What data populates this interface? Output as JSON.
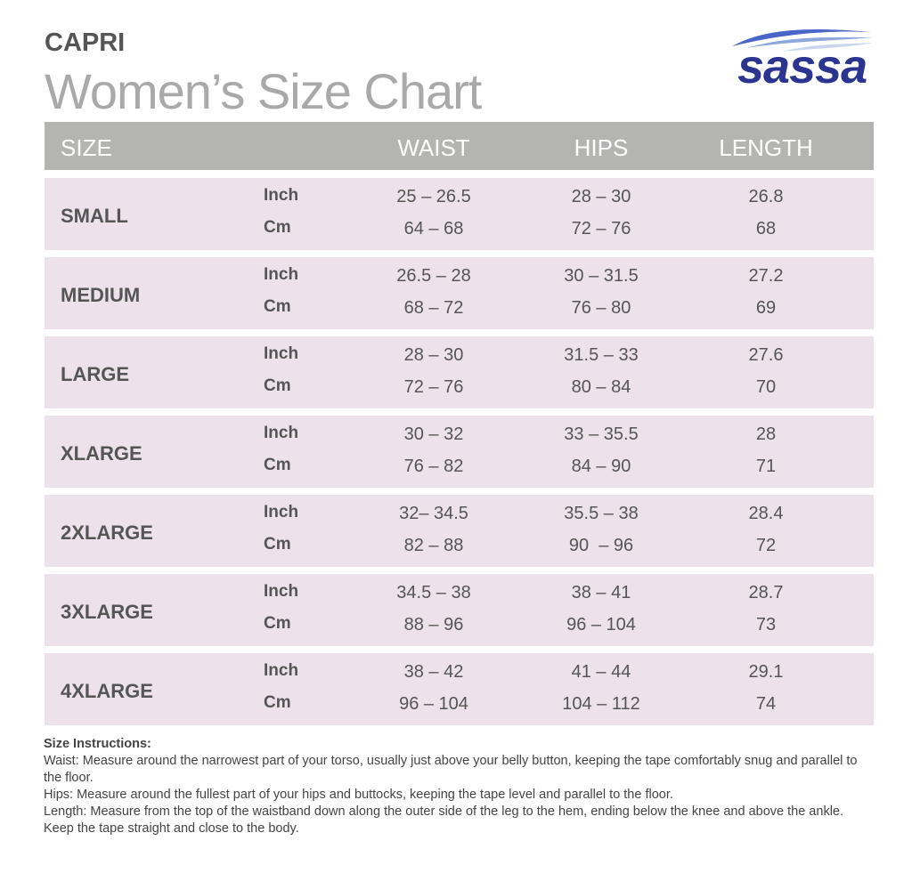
{
  "header": {
    "subtitle": "CAPRI",
    "title": "Women’s Size Chart",
    "logo": "sassa"
  },
  "table": {
    "columns": [
      "SIZE",
      "WAIST",
      "HIPS",
      "LENGTH"
    ],
    "rows": [
      {
        "size": "SMALL",
        "units": [
          {
            "unit": "Inch",
            "waist": "25 – 26.5",
            "hips": "28 – 30",
            "length": "26.8"
          },
          {
            "unit": "Cm",
            "waist": "64 – 68",
            "hips": "72 – 76",
            "length": "68"
          }
        ]
      },
      {
        "size": "MEDIUM",
        "units": [
          {
            "unit": "Inch",
            "waist": "26.5 – 28",
            "hips": "30 – 31.5",
            "length": "27.2"
          },
          {
            "unit": "Cm",
            "waist": "68 – 72",
            "hips": "76 – 80",
            "length": "69"
          }
        ]
      },
      {
        "size": "LARGE",
        "units": [
          {
            "unit": "Inch",
            "waist": "28 – 30",
            "hips": "31.5 – 33",
            "length": "27.6"
          },
          {
            "unit": "Cm",
            "waist": "72 – 76",
            "hips": "80 – 84",
            "length": "70"
          }
        ]
      },
      {
        "size": "XLARGE",
        "units": [
          {
            "unit": "Inch",
            "waist": "30 – 32",
            "hips": "33 – 35.5",
            "length": "28"
          },
          {
            "unit": "Cm",
            "waist": "76 – 82",
            "hips": "84 – 90",
            "length": "71"
          }
        ]
      },
      {
        "size": "2XLARGE",
        "units": [
          {
            "unit": "Inch",
            "waist": "32– 34.5",
            "hips": "35.5 – 38",
            "length": "28.4"
          },
          {
            "unit": "Cm",
            "waist": "82 – 88",
            "hips": "90  – 96",
            "length": "72"
          }
        ]
      },
      {
        "size": "3XLARGE",
        "units": [
          {
            "unit": "Inch",
            "waist": "34.5 – 38",
            "hips": "38 – 41",
            "length": "28.7"
          },
          {
            "unit": "Cm",
            "waist": "88 – 96",
            "hips": "96 – 104",
            "length": "73"
          }
        ]
      },
      {
        "size": "4XLARGE",
        "units": [
          {
            "unit": "Inch",
            "waist": "38 – 42",
            "hips": "41 – 44",
            "length": "29.1"
          },
          {
            "unit": "Cm",
            "waist": "96 – 104",
            "hips": "104 – 112",
            "length": "74"
          }
        ]
      }
    ]
  },
  "instructions": {
    "heading": "Size Instructions:",
    "items": [
      "Waist: Measure around the narrowest part of your torso, usually just above your belly button, keeping the tape comfortably snug and parallel to the floor.",
      "Hips: Measure around the fullest part of your hips and buttocks, keeping the tape level and parallel to the floor.",
      "Length: Measure from the top of the waistband down along the outer side of the leg to the hem, ending below the knee and above the ankle. Keep the tape straight and close to the body."
    ]
  }
}
